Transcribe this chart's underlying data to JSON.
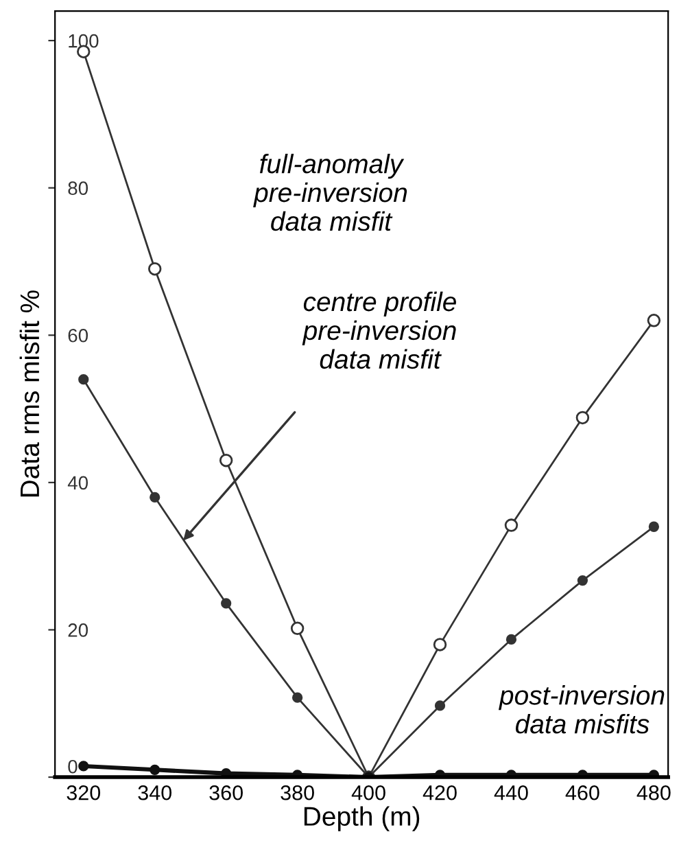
{
  "chart_data": {
    "type": "line",
    "xlabel": "Depth (m)",
    "ylabel": "Data rms misfit %",
    "x": [
      320,
      340,
      360,
      380,
      400,
      420,
      440,
      460,
      480
    ],
    "series": [
      {
        "color": "#333333",
        "values": [
          98.5,
          69,
          43,
          20.2,
          0,
          18,
          34.2,
          48.8,
          62
        ]
      },
      {
        "color": "#333333",
        "values": [
          54,
          38,
          23.6,
          10.8,
          0,
          9.7,
          18.7,
          26.7,
          34
        ]
      },
      {
        "color": "#111111",
        "values": [
          1.5,
          1,
          0.5,
          0.3,
          0,
          0.3,
          0.3,
          0.3,
          0.3
        ]
      }
    ],
    "xlim": [
      312,
      484
    ],
    "ylim": [
      0,
      104
    ],
    "xticks": [
      320,
      340,
      360,
      380,
      400,
      420,
      440,
      460,
      480
    ],
    "yticks": [
      0,
      20,
      40,
      60,
      80,
      100
    ],
    "marker": "circle",
    "line_style": "solid",
    "grid": false,
    "legend": false,
    "annotations": [
      "full-anomaly\npre-inversion\ndata misfit",
      "centre profile\npre-inversion\ndata misfit",
      "post-inversion\ndata misfits"
    ]
  }
}
